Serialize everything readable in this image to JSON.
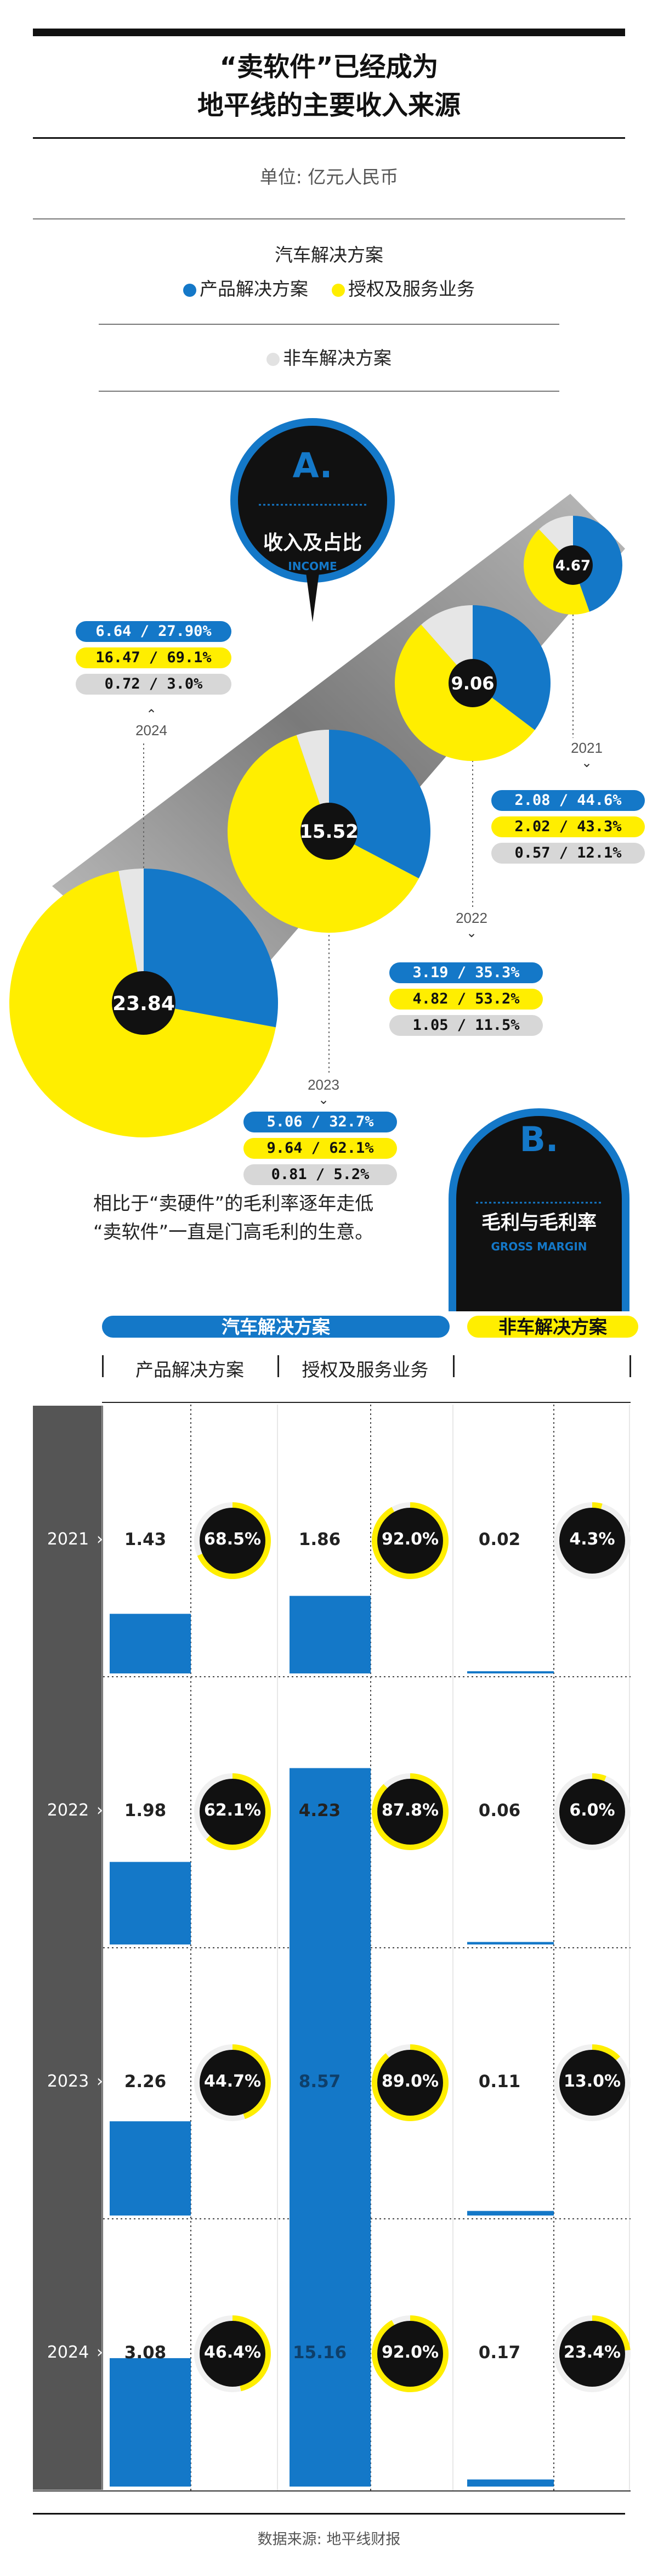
{
  "header": {
    "title_line1": "“卖软件”已经成为",
    "title_line2": "地平线的主要收入来源",
    "unit": "单位: 亿元人民币"
  },
  "legend": {
    "auto_title": "汽车解决方案",
    "product": "产品解决方案",
    "license": "授权及服务业务",
    "non_auto": "非车解决方案"
  },
  "colors": {
    "product": "#1478c8",
    "license": "#ffee00",
    "non_auto": "#e6e6e6",
    "dark": "#111111",
    "year_band": "#555555"
  },
  "section_a": {
    "letter": "A.",
    "title": "收入及占比",
    "subtitle": "INCOME"
  },
  "section_b": {
    "letter": "B.",
    "title": "毛利与毛利率",
    "subtitle": "GROSS MARGIN"
  },
  "income_years": [
    {
      "year": "2021",
      "total": "4.67",
      "product": "2.08 / 44.6%",
      "license": "2.02 / 43.3%",
      "non_auto": "0.57 / 12.1%"
    },
    {
      "year": "2022",
      "total": "9.06",
      "product": "3.19 / 35.3%",
      "license": "4.82 / 53.2%",
      "non_auto": "1.05 / 11.5%"
    },
    {
      "year": "2023",
      "total": "15.52",
      "product": "5.06 / 32.7%",
      "license": "9.64 / 62.1%",
      "non_auto": "0.81 / 5.2%"
    },
    {
      "year": "2024",
      "total": "23.84",
      "product": "6.64 / 27.90%",
      "license": "16.47 / 69.1%",
      "non_auto": "0.72 / 3.0%"
    }
  ],
  "commentary": {
    "line1": "相比于“卖硬件”的毛利率逐年走低",
    "line2": "“卖软件”一直是门高毛利的生意。"
  },
  "table": {
    "auto_header": "汽车解决方案",
    "non_auto_header": "非车解决方案",
    "col_product": "产品解决方案",
    "col_license": "授权及服务业务",
    "rows": [
      {
        "year": "2021",
        "product_gp": "1.43",
        "product_gm": "68.5%",
        "license_gp": "1.86",
        "license_gm": "92.0%",
        "non_auto_gp": "0.02",
        "non_auto_gm": "4.3%"
      },
      {
        "year": "2022",
        "product_gp": "1.98",
        "product_gm": "62.1%",
        "license_gp": "4.23",
        "license_gm": "87.8%",
        "non_auto_gp": "0.06",
        "non_auto_gm": "6.0%"
      },
      {
        "year": "2023",
        "product_gp": "2.26",
        "product_gm": "44.7%",
        "license_gp": "8.57",
        "license_gm": "89.0%",
        "non_auto_gp": "0.11",
        "non_auto_gm": "13.0%"
      },
      {
        "year": "2024",
        "product_gp": "3.08",
        "product_gm": "46.4%",
        "license_gp": "15.16",
        "license_gm": "92.0%",
        "non_auto_gp": "0.17",
        "non_auto_gm": "23.4%"
      }
    ]
  },
  "source": "数据来源: 地平线财报",
  "chart_data": [
    {
      "type": "pie",
      "title": "收入及占比",
      "categories": [
        "2021",
        "2022",
        "2023",
        "2024"
      ],
      "series": [
        {
          "name": "产品解决方案",
          "values": [
            2.08,
            3.19,
            5.06,
            6.64
          ],
          "shares": [
            44.6,
            35.3,
            32.7,
            27.9
          ]
        },
        {
          "name": "授权及服务业务",
          "values": [
            2.02,
            4.82,
            9.64,
            16.47
          ],
          "shares": [
            43.3,
            53.2,
            62.1,
            69.1
          ]
        },
        {
          "name": "非车解决方案",
          "values": [
            0.57,
            1.05,
            0.81,
            0.72
          ],
          "shares": [
            12.1,
            11.5,
            5.2,
            3.0
          ]
        }
      ],
      "totals": [
        4.67,
        9.06,
        15.52,
        23.84
      ]
    },
    {
      "type": "bar",
      "title": "毛利与毛利率",
      "categories": [
        "2021",
        "2022",
        "2023",
        "2024"
      ],
      "series": [
        {
          "name": "产品解决方案",
          "values": [
            1.43,
            1.98,
            2.26,
            3.08
          ],
          "margin": [
            68.5,
            62.1,
            44.7,
            46.4
          ]
        },
        {
          "name": "授权及服务业务",
          "values": [
            1.86,
            4.23,
            8.57,
            15.16
          ],
          "margin": [
            92.0,
            87.8,
            89.0,
            92.0
          ]
        },
        {
          "name": "非车解决方案",
          "values": [
            0.02,
            0.06,
            0.11,
            0.17
          ],
          "margin": [
            4.3,
            6.0,
            13.0,
            23.4
          ]
        }
      ]
    }
  ]
}
